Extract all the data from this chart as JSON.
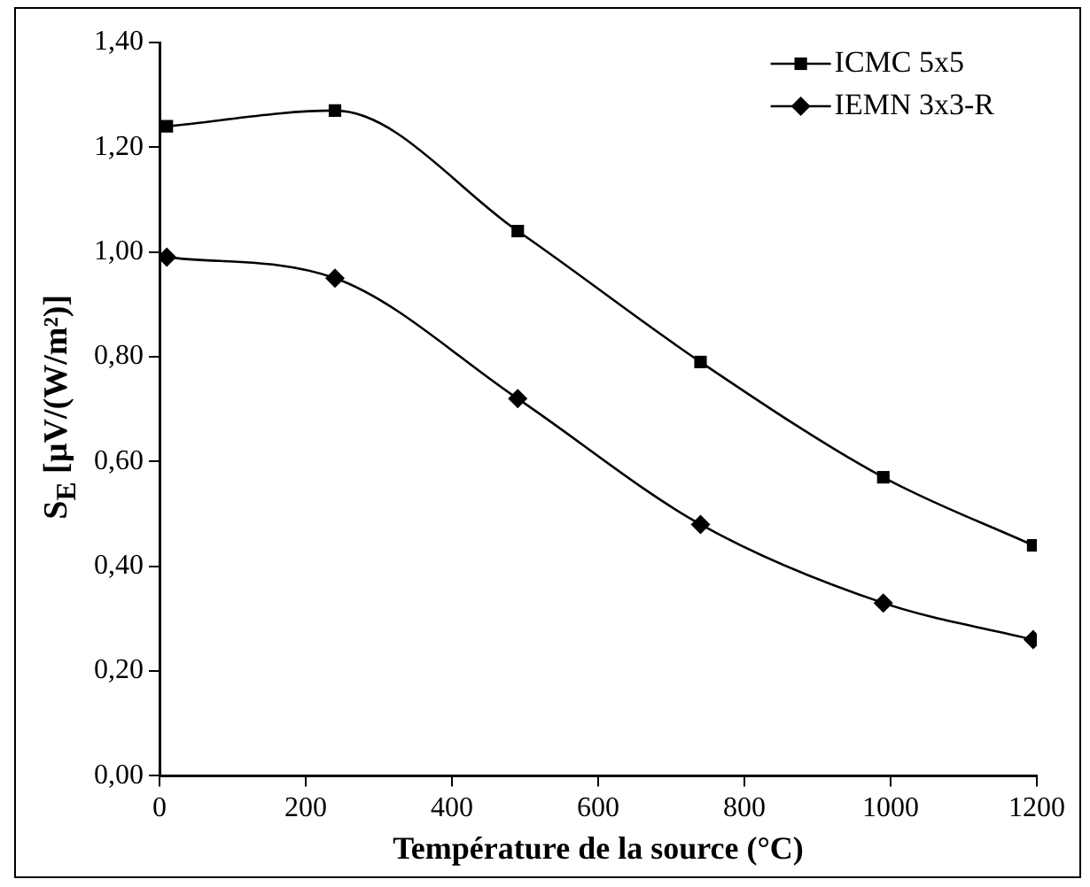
{
  "chart_data": {
    "type": "line",
    "xlabel": "Température de la source (°C)",
    "ylabel": "S$_{E}$ [µV/(W/m²)]",
    "xlim": [
      0,
      1200
    ],
    "xticks": [
      0,
      200,
      400,
      600,
      800,
      1000,
      1200
    ],
    "ylim": [
      0,
      1.4
    ],
    "yticks": [
      {
        "value": 0,
        "label": "0,00"
      },
      {
        "value": 0.2,
        "label": "0,20"
      },
      {
        "value": 0.4,
        "label": "0,40"
      },
      {
        "value": 0.6,
        "label": "0,60"
      },
      {
        "value": 0.8,
        "label": "0,80"
      },
      {
        "value": 1,
        "label": "1,00"
      },
      {
        "value": 1.2,
        "label": "1,20"
      },
      {
        "value": 1.4,
        "label": "1,40"
      }
    ],
    "x": [
      10,
      240,
      490,
      740,
      990,
      1195
    ],
    "series": [
      {
        "name": "ICMC 5x5",
        "color": "#000000",
        "marker": "square",
        "values": [
          1.24,
          1.27,
          1.04,
          0.79,
          0.57,
          0.44
        ]
      },
      {
        "name": "IEMN 3x3-R",
        "color": "#000000",
        "marker": "diamond",
        "values": [
          0.99,
          0.95,
          0.72,
          0.48,
          0.33,
          0.26
        ]
      }
    ],
    "grid": false,
    "legend": "top right"
  }
}
